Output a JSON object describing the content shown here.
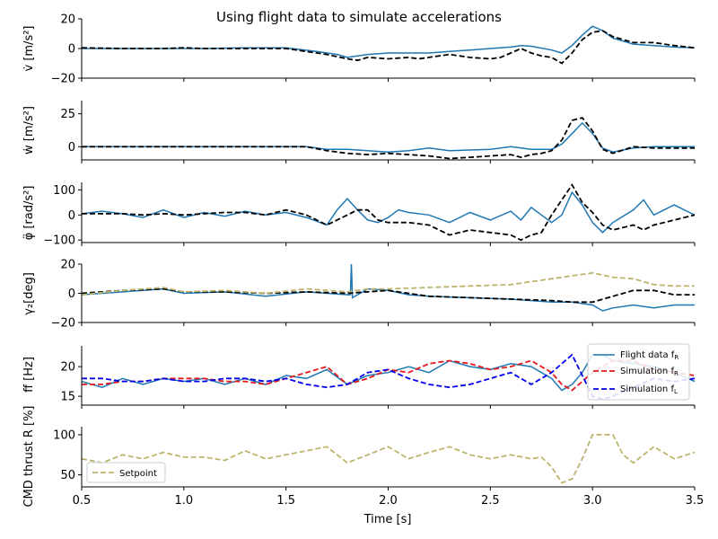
{
  "chart_data": {
    "type": "line",
    "title": "Using flight data to simulate accelerations",
    "xlabel": "Time [s]",
    "xlim": [
      0.5,
      3.5
    ],
    "xticks": [
      "0.5",
      "1.0",
      "1.5",
      "2.0",
      "2.5",
      "3.0",
      "3.5"
    ],
    "colors": {
      "flight": "#1f77b4",
      "sim": "#000000",
      "sim_r": "#e41a1c",
      "sim_l": "#0000ee",
      "setpoint": "#bcb56b"
    },
    "panels": [
      {
        "ylabel": "v̇ [m/s²]",
        "ylim": [
          -20,
          20
        ],
        "yticks": [
          "−20",
          "0",
          "20"
        ],
        "series": [
          {
            "style": "solid",
            "color": "#1f77b4",
            "x": [
              0.5,
              0.7,
              0.9,
              1.0,
              1.1,
              1.3,
              1.5,
              1.65,
              1.75,
              1.8,
              1.9,
              2.0,
              2.1,
              2.2,
              2.3,
              2.4,
              2.5,
              2.6,
              2.65,
              2.7,
              2.8,
              2.85,
              2.9,
              2.95,
              3.0,
              3.05,
              3.1,
              3.2,
              3.3,
              3.4,
              3.5
            ],
            "y": [
              0,
              0,
              0,
              0,
              0,
              0.5,
              0.5,
              -2,
              -4,
              -6,
              -4,
              -3,
              -3,
              -3,
              -2,
              -1,
              0,
              1,
              2,
              1.5,
              -1,
              -3,
              2,
              9,
              15,
              12,
              7,
              3,
              2,
              1,
              0.5
            ]
          },
          {
            "style": "dashed",
            "color": "#000000",
            "x": [
              0.5,
              0.7,
              0.9,
              1.0,
              1.1,
              1.3,
              1.5,
              1.6,
              1.7,
              1.8,
              1.85,
              1.9,
              2.0,
              2.1,
              2.15,
              2.3,
              2.4,
              2.5,
              2.55,
              2.6,
              2.65,
              2.7,
              2.75,
              2.8,
              2.85,
              2.9,
              2.95,
              3.0,
              3.05,
              3.1,
              3.2,
              3.3,
              3.4,
              3.5
            ],
            "y": [
              0.5,
              0,
              0,
              0.5,
              0,
              0,
              0,
              -2,
              -4,
              -7,
              -8,
              -6,
              -7,
              -6,
              -7,
              -4,
              -6,
              -7,
              -6,
              -3,
              0,
              -3,
              -5,
              -6,
              -10,
              -3,
              6,
              11,
              12,
              8,
              4,
              4,
              2,
              0.5
            ]
          }
        ]
      },
      {
        "ylabel": "ẇ [m/s²]",
        "ylim": [
          -10,
          35
        ],
        "yticks": [
          "0",
          "25"
        ],
        "series": [
          {
            "style": "solid",
            "color": "#1f77b4",
            "x": [
              0.5,
              0.8,
              1.0,
              1.3,
              1.6,
              1.7,
              1.8,
              1.9,
              2.0,
              2.1,
              2.2,
              2.3,
              2.5,
              2.6,
              2.7,
              2.8,
              2.85,
              2.9,
              2.95,
              3.0,
              3.05,
              3.1,
              3.2,
              3.3,
              3.5
            ],
            "y": [
              0,
              0,
              0,
              0,
              0,
              -2,
              -2,
              -3,
              -4,
              -3,
              -1,
              -3,
              -2,
              0,
              -2,
              -2,
              2,
              10,
              18,
              10,
              -1,
              -4,
              -1,
              0,
              0
            ]
          },
          {
            "style": "dashed",
            "color": "#000000",
            "x": [
              0.5,
              0.8,
              1.0,
              1.3,
              1.6,
              1.7,
              1.75,
              1.8,
              1.9,
              2.0,
              2.1,
              2.2,
              2.3,
              2.4,
              2.5,
              2.6,
              2.65,
              2.7,
              2.75,
              2.8,
              2.85,
              2.9,
              2.95,
              3.0,
              3.05,
              3.1,
              3.2,
              3.3,
              3.5
            ],
            "y": [
              0,
              0,
              0,
              0,
              0,
              -3,
              -4,
              -5,
              -6,
              -5,
              -6,
              -7,
              -9,
              -8,
              -7,
              -6,
              -8,
              -6,
              -5,
              -3,
              5,
              20,
              22,
              12,
              -2,
              -5,
              0,
              -1,
              -1
            ]
          }
        ]
      },
      {
        "ylabel": "φ̈ [rad/s²]",
        "ylim": [
          -110,
          130
        ],
        "yticks": [
          "−100",
          "0",
          "100"
        ],
        "series": [
          {
            "style": "solid",
            "color": "#1f77b4",
            "x": [
              0.5,
              0.6,
              0.7,
              0.8,
              0.9,
              1.0,
              1.1,
              1.2,
              1.3,
              1.4,
              1.5,
              1.6,
              1.7,
              1.75,
              1.8,
              1.85,
              1.9,
              1.95,
              2.0,
              2.05,
              2.1,
              2.2,
              2.3,
              2.4,
              2.5,
              2.6,
              2.65,
              2.7,
              2.8,
              2.85,
              2.9,
              2.95,
              3.0,
              3.05,
              3.1,
              3.2,
              3.25,
              3.3,
              3.4,
              3.5
            ],
            "y": [
              5,
              15,
              5,
              -10,
              20,
              -10,
              10,
              -5,
              15,
              0,
              10,
              -10,
              -40,
              20,
              65,
              20,
              -20,
              -30,
              -10,
              20,
              10,
              0,
              -30,
              10,
              -20,
              15,
              -20,
              30,
              -30,
              0,
              90,
              40,
              -30,
              -70,
              -30,
              20,
              60,
              0,
              40,
              0
            ]
          },
          {
            "style": "dashed",
            "color": "#000000",
            "x": [
              0.5,
              0.6,
              0.7,
              0.8,
              0.9,
              1.0,
              1.1,
              1.2,
              1.3,
              1.4,
              1.5,
              1.6,
              1.7,
              1.75,
              1.8,
              1.85,
              1.9,
              1.95,
              2.0,
              2.1,
              2.2,
              2.3,
              2.4,
              2.5,
              2.6,
              2.65,
              2.7,
              2.75,
              2.8,
              2.85,
              2.9,
              2.95,
              3.0,
              3.05,
              3.1,
              3.2,
              3.25,
              3.3,
              3.4,
              3.5
            ],
            "y": [
              5,
              5,
              5,
              0,
              5,
              0,
              5,
              10,
              10,
              0,
              20,
              0,
              -40,
              -20,
              0,
              20,
              20,
              -20,
              -30,
              -30,
              -40,
              -80,
              -60,
              -70,
              -80,
              -100,
              -80,
              -70,
              0,
              60,
              120,
              50,
              10,
              -40,
              -60,
              -40,
              -60,
              -40,
              -20,
              0
            ]
          }
        ]
      },
      {
        "ylabel": "γ₂[deg]",
        "ylim": [
          -20,
          20
        ],
        "yticks": [
          "−20",
          "0",
          "20"
        ],
        "series": [
          {
            "style": "solid",
            "color": "#1f77b4",
            "x": [
              0.5,
              0.7,
              0.9,
              1.0,
              1.2,
              1.4,
              1.6,
              1.8,
              1.815,
              1.82,
              1.825,
              1.9,
              2.0,
              2.1,
              2.2,
              2.4,
              2.6,
              2.8,
              2.9,
              3.0,
              3.05,
              3.1,
              3.2,
              3.3,
              3.4,
              3.5
            ],
            "y": [
              -1,
              1,
              3,
              0,
              1,
              -2,
              1,
              -1,
              -1,
              20,
              -3,
              3,
              2,
              -1,
              -2,
              -3,
              -4,
              -6,
              -6,
              -8,
              -12,
              -10,
              -8,
              -10,
              -8,
              -8
            ]
          },
          {
            "style": "dashed",
            "color": "#000000",
            "x": [
              0.5,
              0.7,
              0.9,
              1.0,
              1.2,
              1.4,
              1.6,
              1.8,
              2.0,
              2.2,
              2.4,
              2.6,
              2.8,
              2.9,
              3.0,
              3.1,
              3.2,
              3.3,
              3.4,
              3.5
            ],
            "y": [
              0,
              2,
              3,
              1,
              1,
              0,
              1,
              0,
              2,
              -2,
              -3,
              -4,
              -5,
              -6,
              -6,
              -2,
              2,
              2,
              -1,
              -1
            ]
          },
          {
            "style": "dashed",
            "color": "#bcb56b",
            "x": [
              0.5,
              0.7,
              0.9,
              1.0,
              1.2,
              1.4,
              1.6,
              1.8,
              1.9,
              2.0,
              2.2,
              2.4,
              2.6,
              2.8,
              2.9,
              3.0,
              3.1,
              3.2,
              3.3,
              3.4,
              3.5
            ],
            "y": [
              -1,
              2,
              4,
              1,
              2,
              0,
              3,
              1,
              3,
              3,
              4,
              5,
              6,
              10,
              12,
              14,
              11,
              10,
              6,
              5,
              5
            ]
          }
        ]
      },
      {
        "ylabel": "ff [Hz]",
        "ylim": [
          13.5,
          23.5
        ],
        "yticks": [
          "15",
          "20"
        ],
        "legend": {
          "position": "right",
          "entries": [
            "Flight data f_R",
            "Simulation f_R",
            "Simulation f_L"
          ]
        },
        "series": [
          {
            "style": "solid",
            "color": "#1f77b4",
            "x": [
              0.5,
              0.6,
              0.7,
              0.8,
              0.9,
              1.0,
              1.1,
              1.2,
              1.3,
              1.4,
              1.5,
              1.6,
              1.7,
              1.8,
              1.9,
              2.0,
              2.1,
              2.2,
              2.3,
              2.4,
              2.5,
              2.6,
              2.7,
              2.8,
              2.85,
              2.9,
              2.95,
              3.0,
              3.05,
              3.1,
              3.2,
              3.3,
              3.4,
              3.5
            ],
            "y": [
              17.5,
              16.5,
              18,
              17,
              18,
              17.5,
              18,
              17,
              18,
              17,
              18.5,
              18,
              19.5,
              17,
              18.5,
              19,
              20,
              19,
              21,
              20,
              19.5,
              20.5,
              20,
              18,
              16,
              17,
              19,
              22,
              22,
              21,
              20.5,
              20,
              19,
              17.5
            ]
          },
          {
            "style": "dashed",
            "color": "#e41a1c",
            "x": [
              0.5,
              0.6,
              0.7,
              0.8,
              0.9,
              1.0,
              1.1,
              1.2,
              1.3,
              1.4,
              1.5,
              1.6,
              1.7,
              1.8,
              1.9,
              2.0,
              2.1,
              2.2,
              2.3,
              2.4,
              2.5,
              2.6,
              2.7,
              2.8,
              2.85,
              2.9,
              3.0,
              3.1,
              3.2,
              3.3,
              3.4,
              3.5
            ],
            "y": [
              17,
              17,
              17.5,
              17.5,
              18,
              18,
              18,
              17.5,
              17.5,
              17,
              18,
              19,
              20,
              17,
              18,
              19.5,
              19,
              20.5,
              21,
              20.5,
              19.5,
              20,
              21,
              19,
              17,
              16,
              19,
              21,
              21,
              19.5,
              19,
              18.5
            ]
          },
          {
            "style": "dashed",
            "color": "#0000ee",
            "x": [
              0.5,
              0.6,
              0.7,
              0.8,
              0.9,
              1.0,
              1.1,
              1.2,
              1.3,
              1.4,
              1.5,
              1.6,
              1.7,
              1.8,
              1.9,
              2.0,
              2.1,
              2.2,
              2.3,
              2.4,
              2.5,
              2.6,
              2.7,
              2.8,
              2.9,
              3.0,
              3.05,
              3.1,
              3.2,
              3.3,
              3.4,
              3.5
            ],
            "y": [
              18,
              18,
              17.5,
              17.5,
              18,
              17.5,
              17.5,
              18,
              18,
              17.5,
              18,
              17,
              16.5,
              17,
              19,
              19.5,
              18,
              17,
              16.5,
              17,
              18,
              19,
              17,
              19,
              22,
              15,
              14.5,
              15,
              16.5,
              18,
              17.5,
              18
            ]
          }
        ]
      },
      {
        "ylabel": "CMD thrust R [%]",
        "ylim": [
          35,
          110
        ],
        "yticks": [
          "50",
          "100"
        ],
        "legend": {
          "position": "bottom-left",
          "entries": [
            "Setpoint"
          ]
        },
        "series": [
          {
            "style": "dashed",
            "color": "#bcb56b",
            "x": [
              0.5,
              0.6,
              0.7,
              0.8,
              0.9,
              1.0,
              1.1,
              1.2,
              1.3,
              1.4,
              1.5,
              1.6,
              1.7,
              1.8,
              1.9,
              2.0,
              2.1,
              2.2,
              2.3,
              2.4,
              2.5,
              2.6,
              2.7,
              2.75,
              2.8,
              2.85,
              2.9,
              2.95,
              3.0,
              3.1,
              3.15,
              3.2,
              3.3,
              3.4,
              3.5
            ],
            "y": [
              70,
              65,
              75,
              70,
              78,
              72,
              72,
              68,
              80,
              70,
              75,
              80,
              85,
              65,
              75,
              85,
              70,
              78,
              85,
              75,
              70,
              75,
              70,
              72,
              60,
              40,
              45,
              70,
              100,
              100,
              75,
              65,
              85,
              70,
              78
            ]
          }
        ]
      }
    ],
    "legend_labels": {
      "flight_r": "Flight data f",
      "sim_r": "Simulation f",
      "sim_l": "Simulation f",
      "sub_r": "R",
      "sub_l": "L",
      "setpoint": "Setpoint"
    }
  }
}
